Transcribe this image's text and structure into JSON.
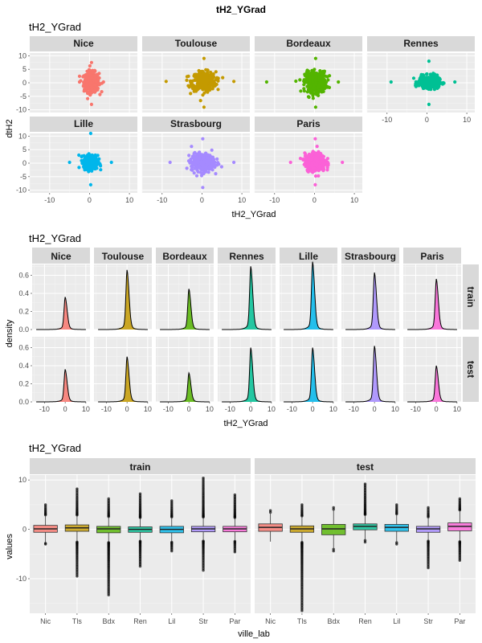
{
  "figure_title": "tH2_YGrad",
  "colors": {
    "Nice": "#F8766D",
    "Toulouse": "#C49A00",
    "Bordeaux": "#53B400",
    "Rennes": "#00C094",
    "Lille": "#00B6EB",
    "Strasbourg": "#A58AFF",
    "Paris": "#FB61D7",
    "panel_bg": "#EBEBEB",
    "strip_bg": "#D9D9D9",
    "grid_major": "#FFFFFF",
    "grid_minor": "#F5F5F5"
  },
  "chart_data": [
    {
      "type": "scatter",
      "title": "tH2_YGrad",
      "xlabel": "tH2_YGrad",
      "ylabel": "dtH2",
      "xlim": [
        -15,
        12
      ],
      "ylim": [
        -11,
        11
      ],
      "x_ticks": [
        -10,
        0,
        10
      ],
      "y_ticks": [
        -10,
        -5,
        0,
        5,
        10
      ],
      "grid": true,
      "facets": [
        {
          "name": "Nice",
          "x_center": 0.5,
          "y_center": 0.3,
          "x_spread": 1.7,
          "y_spread": 3.3,
          "x_range": [
            -2.5,
            3.5
          ],
          "y_range": [
            -8,
            7.5
          ]
        },
        {
          "name": "Toulouse",
          "x_center": 0.5,
          "y_center": 0.5,
          "x_spread": 2.7,
          "y_spread": 3.2,
          "x_range": [
            -9,
            8
          ],
          "y_range": [
            -9,
            9
          ]
        },
        {
          "name": "Bordeaux",
          "x_center": 0.3,
          "y_center": 0.3,
          "x_spread": 2.4,
          "y_spread": 3.5,
          "x_range": [
            -12,
            6
          ],
          "y_range": [
            -9,
            9
          ]
        },
        {
          "name": "Rennes",
          "x_center": 0.5,
          "y_center": 0.3,
          "x_spread": 2.3,
          "y_spread": 2.0,
          "x_range": [
            -9,
            7
          ],
          "y_range": [
            -8,
            8
          ]
        },
        {
          "name": "Lille",
          "x_center": 0.3,
          "y_center": 0.3,
          "x_spread": 1.6,
          "y_spread": 2.3,
          "x_range": [
            -5,
            5.5
          ],
          "y_range": [
            -8,
            11
          ]
        },
        {
          "name": "Strasbourg",
          "x_center": 0.2,
          "y_center": 0.3,
          "x_spread": 2.6,
          "y_spread": 3.0,
          "x_range": [
            -8,
            8
          ],
          "y_range": [
            -9,
            9
          ]
        },
        {
          "name": "Paris",
          "x_center": 0.2,
          "y_center": 0.3,
          "x_spread": 2.3,
          "y_spread": 3.0,
          "x_range": [
            -6,
            7
          ],
          "y_range": [
            -8,
            9
          ]
        }
      ]
    },
    {
      "type": "area",
      "title": "tH2_YGrad",
      "xlabel": "tH2_YGrad",
      "ylabel": "density",
      "xlim": [
        -16,
        12
      ],
      "ylim": [
        0,
        0.72
      ],
      "x_ticks": [
        -10,
        0,
        10
      ],
      "y_ticks": [
        0.0,
        0.2,
        0.4,
        0.6
      ],
      "y_tick_labels": [
        "0.0",
        "0.2",
        "0.4",
        "0.6"
      ],
      "columns": [
        "Nice",
        "Toulouse",
        "Bordeaux",
        "Rennes",
        "Lille",
        "Strasbourg",
        "Paris"
      ],
      "rows": [
        "train",
        "test"
      ],
      "series": [
        {
          "name": "Nice",
          "train_peak": 0.36,
          "test_peak": 0.36
        },
        {
          "name": "Toulouse",
          "train_peak": 0.66,
          "test_peak": 0.5
        },
        {
          "name": "Bordeaux",
          "train_peak": 0.45,
          "test_peak": 0.32
        },
        {
          "name": "Rennes",
          "train_peak": 0.7,
          "test_peak": 0.6
        },
        {
          "name": "Lille",
          "train_peak": 0.75,
          "test_peak": 0.6
        },
        {
          "name": "Strasbourg",
          "train_peak": 0.63,
          "test_peak": 0.62
        },
        {
          "name": "Paris",
          "train_peak": 0.56,
          "test_peak": 0.4
        }
      ]
    },
    {
      "type": "box",
      "title": "tH2_YGrad",
      "xlabel": "ville_lab",
      "ylabel": "values",
      "ylim": [
        -17,
        11
      ],
      "y_ticks": [
        -10,
        0,
        10
      ],
      "categories": [
        "Nic",
        "Tls",
        "Bdx",
        "Ren",
        "Lil",
        "Str",
        "Par"
      ],
      "panels": [
        {
          "name": "train",
          "boxes": [
            {
              "cat": "Nic",
              "q1": -0.6,
              "median": 0.1,
              "q3": 0.8,
              "whisker_low": -2.7,
              "whisker_high": 2.8,
              "out_low": -3,
              "out_high": 5
            },
            {
              "cat": "Tls",
              "q1": -0.4,
              "median": 0.3,
              "q3": 0.9,
              "whisker_low": -2.5,
              "whisker_high": 2.8,
              "out_low": -9.5,
              "out_high": 8.2
            },
            {
              "cat": "Bdx",
              "q1": -0.7,
              "median": 0.1,
              "q3": 0.6,
              "whisker_low": -2.6,
              "whisker_high": 2.5,
              "out_low": -13.3,
              "out_high": 6.2
            },
            {
              "cat": "Ren",
              "q1": -0.6,
              "median": 0.0,
              "q3": 0.5,
              "whisker_low": -2.3,
              "whisker_high": 2.3,
              "out_low": -7.5,
              "out_high": 7.2
            },
            {
              "cat": "Lil",
              "q1": -0.7,
              "median": 0.0,
              "q3": 0.6,
              "whisker_low": -2.5,
              "whisker_high": 2.4,
              "out_low": -4.4,
              "out_high": 5.8
            },
            {
              "cat": "Str",
              "q1": -0.5,
              "median": 0.1,
              "q3": 0.6,
              "whisker_low": -2.3,
              "whisker_high": 2.4,
              "out_low": -8.3,
              "out_high": 10.4
            },
            {
              "cat": "Par",
              "q1": -0.5,
              "median": 0.1,
              "q3": 0.6,
              "whisker_low": -2.3,
              "whisker_high": 2.3,
              "out_low": -4.6,
              "out_high": 7.0
            }
          ]
        },
        {
          "name": "test",
          "boxes": [
            {
              "cat": "Nic",
              "q1": -0.4,
              "median": 0.4,
              "q3": 1.1,
              "whisker_low": -2.5,
              "whisker_high": 3.2,
              "out_low": -2.5,
              "out_high": 3.8
            },
            {
              "cat": "Tls",
              "q1": -0.6,
              "median": 0.1,
              "q3": 0.7,
              "whisker_low": -2.5,
              "whisker_high": 2.6,
              "out_low": -16.5,
              "out_high": 5.0
            },
            {
              "cat": "Bdx",
              "q1": -1.1,
              "median": 0.1,
              "q3": 1.0,
              "whisker_low": -3.8,
              "whisker_high": 3.8,
              "out_low": -4.4,
              "out_high": 4.4
            },
            {
              "cat": "Ren",
              "q1": -0.1,
              "median": 0.6,
              "q3": 1.1,
              "whisker_low": -2.0,
              "whisker_high": 2.9,
              "out_low": -2.6,
              "out_high": 9.2
            },
            {
              "cat": "Lil",
              "q1": -0.4,
              "median": 0.4,
              "q3": 1.0,
              "whisker_low": -2.5,
              "whisker_high": 3.0,
              "out_low": -3.0,
              "out_high": 5.0
            },
            {
              "cat": "Str",
              "q1": -0.6,
              "median": 0.1,
              "q3": 0.6,
              "whisker_low": -2.3,
              "whisker_high": 2.4,
              "out_low": -7.8,
              "out_high": 4.4
            },
            {
              "cat": "Par",
              "q1": -0.3,
              "median": 0.6,
              "q3": 1.3,
              "whisker_low": -2.4,
              "whisker_high": 3.8,
              "out_low": -6.3,
              "out_high": 6.2
            }
          ]
        }
      ]
    }
  ]
}
